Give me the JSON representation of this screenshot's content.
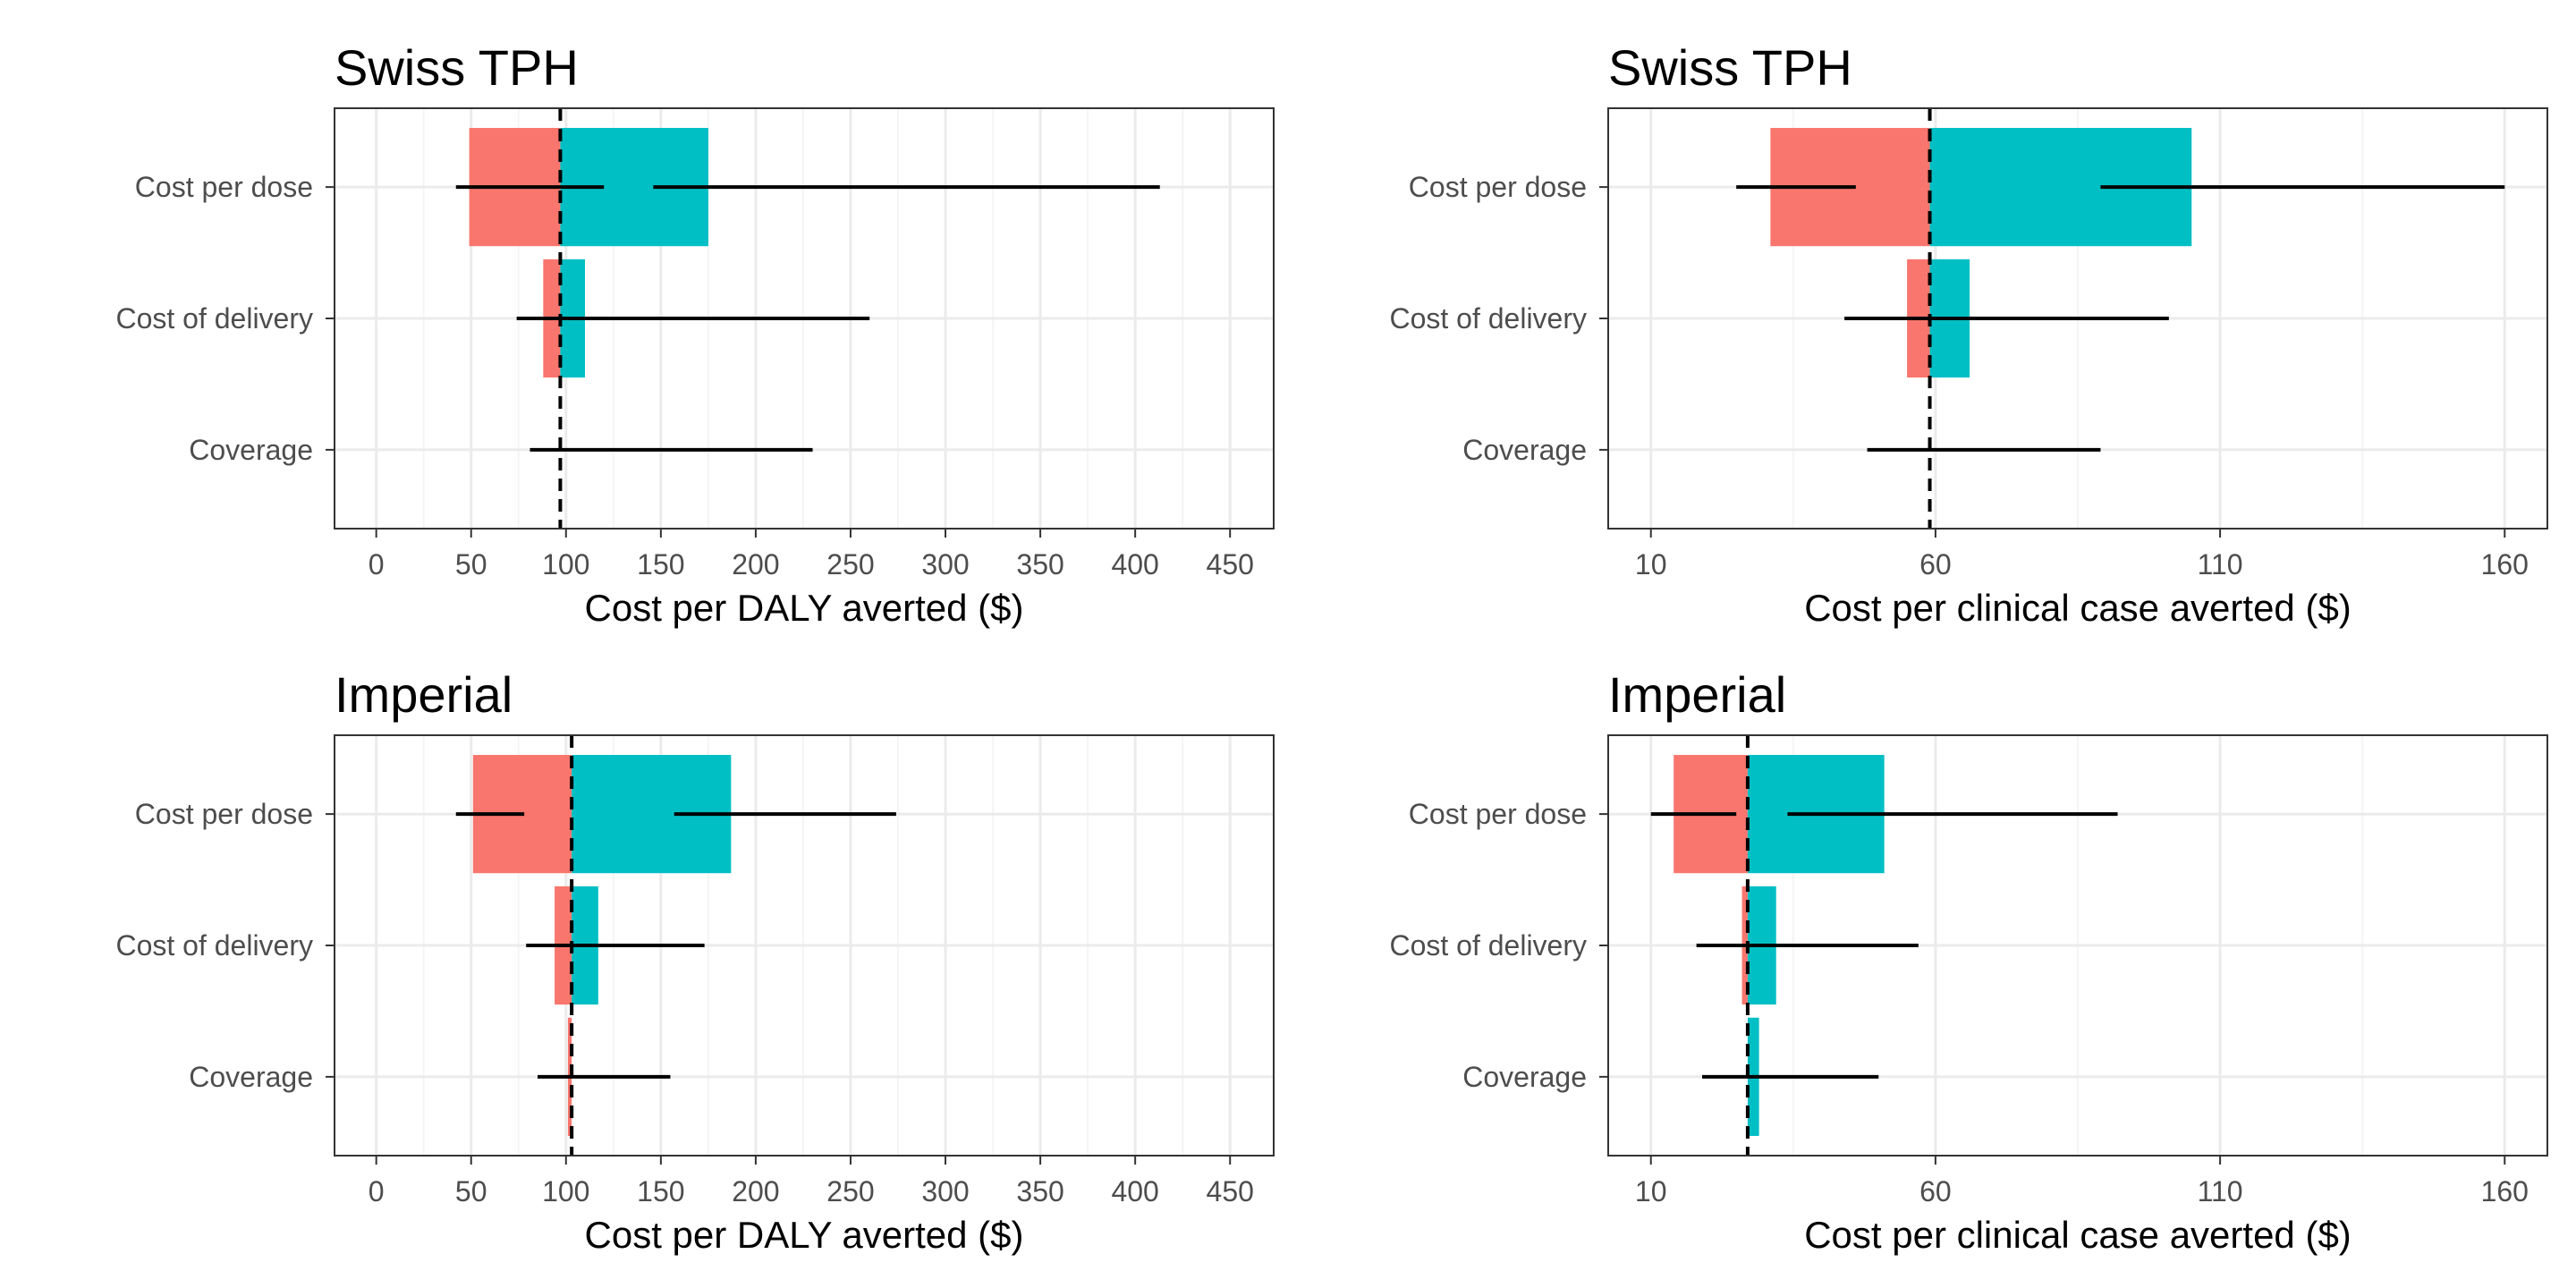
{
  "colors": {
    "low": "#F8766D",
    "high": "#00BFC4",
    "grid_major": "#EBEBEB",
    "grid_minor": "#F5F5F5",
    "frame": "#333333",
    "whisker": "#000000",
    "reference": "#000000"
  },
  "chart_data": [
    {
      "type": "bar",
      "subtype": "tornado",
      "title": "Swiss TPH",
      "xlabel": "Cost per DALY averted ($)",
      "xlim": [
        -22,
        473
      ],
      "xticks": [
        0,
        50,
        100,
        150,
        200,
        250,
        300,
        350,
        400,
        450
      ],
      "xtick_labels": [
        "0",
        "50",
        "100",
        "150",
        "200",
        "250",
        "300",
        "350",
        "400",
        "450"
      ],
      "reference_value": 97,
      "categories": [
        "Cost per dose",
        "Cost of delivery",
        "Coverage"
      ],
      "bars": [
        {
          "category": "Cost per dose",
          "low": 49,
          "high": 175
        },
        {
          "category": "Cost of delivery",
          "low": 88,
          "high": 110
        },
        {
          "category": "Coverage",
          "low": 97,
          "high": 97
        }
      ],
      "intervals": [
        {
          "category": "Cost per dose",
          "from": 42,
          "to": 120
        },
        {
          "category": "Cost per dose",
          "from": 146,
          "to": 413
        },
        {
          "category": "Cost of delivery",
          "from": 74,
          "to": 260
        },
        {
          "category": "Coverage",
          "from": 81,
          "to": 230
        }
      ]
    },
    {
      "type": "bar",
      "subtype": "tornado",
      "title": "Swiss TPH",
      "xlabel": "Cost per clinical case averted ($)",
      "xlim": [
        2.5,
        167.5
      ],
      "xticks": [
        10,
        60,
        110,
        160
      ],
      "xtick_labels": [
        "10",
        "60",
        "110",
        "160"
      ],
      "reference_value": 59,
      "categories": [
        "Cost per dose",
        "Cost of delivery",
        "Coverage"
      ],
      "bars": [
        {
          "category": "Cost per dose",
          "low": 31,
          "high": 105
        },
        {
          "category": "Cost of delivery",
          "low": 55,
          "high": 66
        },
        {
          "category": "Coverage",
          "low": 59,
          "high": 59
        }
      ],
      "intervals": [
        {
          "category": "Cost per dose",
          "from": 25,
          "to": 46
        },
        {
          "category": "Cost per dose",
          "from": 89,
          "to": 160
        },
        {
          "category": "Cost of delivery",
          "from": 44,
          "to": 101
        },
        {
          "category": "Coverage",
          "from": 48,
          "to": 89
        }
      ]
    },
    {
      "type": "bar",
      "subtype": "tornado",
      "title": "Imperial",
      "xlabel": "Cost per DALY averted ($)",
      "xlim": [
        -22,
        473
      ],
      "xticks": [
        0,
        50,
        100,
        150,
        200,
        250,
        300,
        350,
        400,
        450
      ],
      "xtick_labels": [
        "0",
        "50",
        "100",
        "150",
        "200",
        "250",
        "300",
        "350",
        "400",
        "450"
      ],
      "reference_value": 103,
      "categories": [
        "Cost per dose",
        "Cost of delivery",
        "Coverage"
      ],
      "bars": [
        {
          "category": "Cost per dose",
          "low": 51,
          "high": 187
        },
        {
          "category": "Cost of delivery",
          "low": 94,
          "high": 117
        },
        {
          "category": "Coverage",
          "low": 101,
          "high": 103
        }
      ],
      "intervals": [
        {
          "category": "Cost per dose",
          "from": 42,
          "to": 78
        },
        {
          "category": "Cost per dose",
          "from": 157,
          "to": 274
        },
        {
          "category": "Cost of delivery",
          "from": 79,
          "to": 173
        },
        {
          "category": "Coverage",
          "from": 85,
          "to": 155
        }
      ]
    },
    {
      "type": "bar",
      "subtype": "tornado",
      "title": "Imperial",
      "xlabel": "Cost per clinical case averted ($)",
      "xlim": [
        2.5,
        167.5
      ],
      "xticks": [
        10,
        60,
        110,
        160
      ],
      "xtick_labels": [
        "10",
        "60",
        "110",
        "160"
      ],
      "reference_value": 27,
      "categories": [
        "Cost per dose",
        "Cost of delivery",
        "Coverage"
      ],
      "bars": [
        {
          "category": "Cost per dose",
          "low": 14,
          "high": 51
        },
        {
          "category": "Cost of delivery",
          "low": 26,
          "high": 32
        },
        {
          "category": "Coverage",
          "low": 28,
          "high": 29
        }
      ],
      "intervals": [
        {
          "category": "Cost per dose",
          "from": 10,
          "to": 25
        },
        {
          "category": "Cost per dose",
          "from": 34,
          "to": 92
        },
        {
          "category": "Cost of delivery",
          "from": 18,
          "to": 57
        },
        {
          "category": "Coverage",
          "from": 19,
          "to": 50
        }
      ]
    }
  ]
}
